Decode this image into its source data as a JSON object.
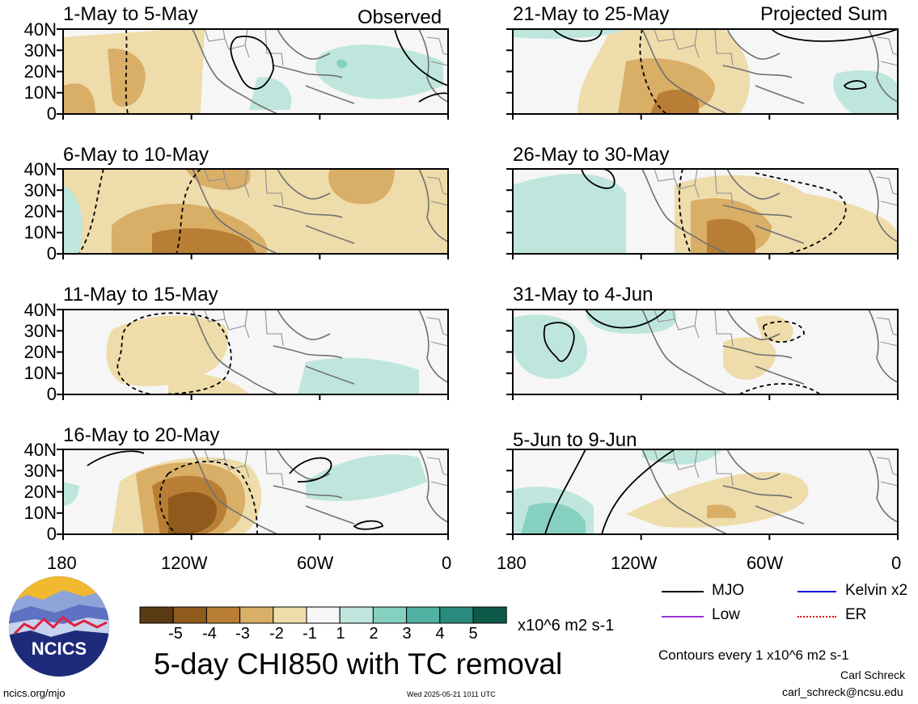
{
  "panels": {
    "left": [
      {
        "title": "1-May to 5-May",
        "tag": "Observed"
      },
      {
        "title": "6-May to 10-May",
        "tag": ""
      },
      {
        "title": "11-May to 15-May",
        "tag": ""
      },
      {
        "title": "16-May to 20-May",
        "tag": ""
      }
    ],
    "right": [
      {
        "title": "21-May to 25-May",
        "tag": "Projected Sum"
      },
      {
        "title": "26-May to 30-May",
        "tag": ""
      },
      {
        "title": "31-May to 4-Jun",
        "tag": ""
      },
      {
        "title": "5-Jun to 9-Jun",
        "tag": ""
      }
    ]
  },
  "y_ticks": [
    "40N",
    "30N",
    "20N",
    "10N",
    "0"
  ],
  "x_ticks": [
    "180",
    "120W",
    "60W",
    "0"
  ],
  "colorbar": {
    "labels": [
      "-5",
      "-4",
      "-3",
      "-2",
      "-1",
      "1",
      "2",
      "3",
      "4",
      "5"
    ],
    "units": "x10^6 m2 s-1",
    "colors": [
      "#5a3a12",
      "#8f5a1c",
      "#b97e35",
      "#d9ae66",
      "#eedcaa",
      "#f6f6f6",
      "#bfe6dc",
      "#86d0c1",
      "#4fb1a2",
      "#2b8a7e",
      "#0f5948"
    ]
  },
  "title": "5-day CHI850 with TC removal",
  "legend": [
    {
      "label": "MJO",
      "color": "#000000"
    },
    {
      "label": "Kelvin x2",
      "color": "#1010e0"
    },
    {
      "label": "Low",
      "color": "#9b30d8"
    },
    {
      "label": "ER",
      "color": "#e01010"
    }
  ],
  "contour_note": "Contours every 1 x10^6 m2 s-1",
  "author": "Carl Schreck",
  "email": "carl_schreck@ncsu.edu",
  "site": "ncics.org/mjo",
  "timestamp": "Wed 2025-05-21 1011 UTC",
  "logo_text": "NCICS"
}
